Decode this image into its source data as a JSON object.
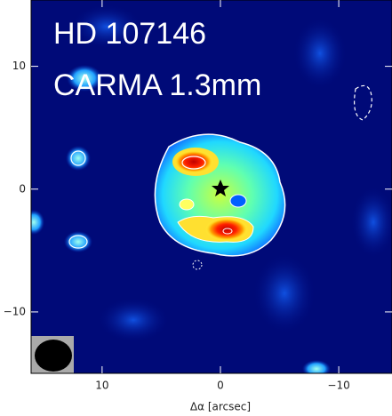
{
  "chart_data": {
    "type": "image",
    "title": "HD 107146",
    "subtitle": "CARMA 1.3mm",
    "x_label": "Δα  [arcsec]",
    "xlim": [
      16,
      -14.5
    ],
    "ylim": [
      -15,
      15.4
    ],
    "xticks": [
      10,
      0,
      {
        "value": -10,
        "label": "−10"
      }
    ],
    "yticks": [
      10,
      0,
      {
        "value": -10,
        "label": "−10"
      }
    ]
  }
}
